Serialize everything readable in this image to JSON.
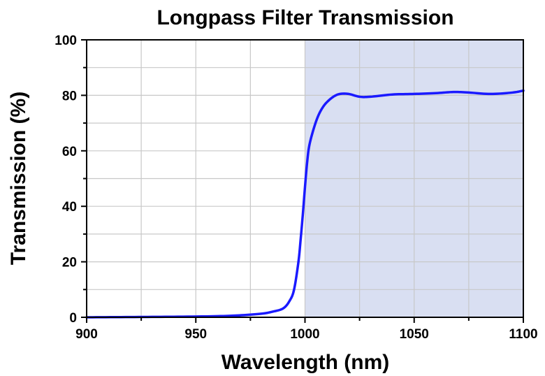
{
  "chart_data": {
    "type": "line",
    "title": "Longpass Filter Transmission",
    "xlabel": "Wavelength (nm)",
    "ylabel": "Transmission (%)",
    "xlim": [
      900,
      1100
    ],
    "ylim": [
      0,
      100
    ],
    "x_ticks": [
      "900",
      "950",
      "1000",
      "1050",
      "1100"
    ],
    "y_ticks": [
      "0",
      "20",
      "40",
      "60",
      "80",
      "100"
    ],
    "grid": true,
    "passband": {
      "x_start": 1000,
      "x_end": 1100,
      "color": "#d9dff2"
    },
    "series": [
      {
        "color": "#1a1aff",
        "x": [
          900,
          920,
          940,
          960,
          970,
          980,
          985,
          990,
          993,
          995,
          997,
          998,
          999,
          1000,
          1001,
          1002,
          1004,
          1006,
          1008,
          1010,
          1013,
          1016,
          1020,
          1025,
          1030,
          1040,
          1050,
          1060,
          1068,
          1075,
          1085,
          1095,
          1100
        ],
        "y": [
          0,
          0.1,
          0.2,
          0.4,
          0.7,
          1.3,
          2.0,
          3.2,
          6.0,
          10.0,
          20.0,
          28.0,
          37.0,
          47.0,
          56.0,
          62.0,
          68.0,
          72.5,
          75.5,
          77.5,
          79.5,
          80.5,
          80.5,
          79.5,
          79.5,
          80.3,
          80.5,
          80.8,
          81.2,
          81.0,
          80.5,
          81.0,
          81.7
        ]
      }
    ]
  }
}
